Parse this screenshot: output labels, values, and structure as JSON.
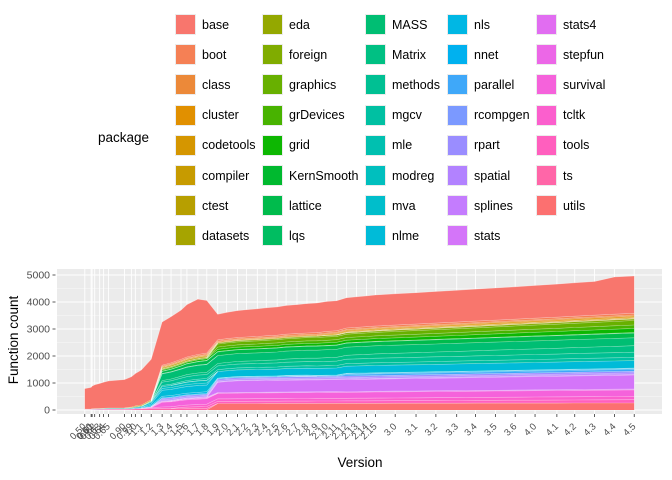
{
  "legend": {
    "title": "package",
    "columns": 5,
    "rows_per_column": 8
  },
  "chart_data": {
    "type": "area",
    "stacked": true,
    "title": "",
    "xlabel": "Version",
    "ylabel": "Function count",
    "ylim": [
      0,
      5000
    ],
    "yticks": [
      0,
      1000,
      2000,
      3000,
      4000,
      5000
    ],
    "grid": true,
    "panel_bg": "#EBEBEB",
    "grid_color": "#FFFFFF",
    "axis_text_color": "#4D4D4D",
    "tick_color": "#333333",
    "legend_position": "top",
    "versions": [
      "0.50",
      "0.60",
      "0.61",
      "0.62",
      "0.63",
      "0.64",
      "0.65",
      "0.90",
      "0.99",
      "1.0",
      "1.1",
      "1.2",
      "1.3",
      "1.4",
      "1.5",
      "1.6",
      "1.7",
      "1.8",
      "1.9",
      "2.0",
      "2.1",
      "2.2",
      "2.3",
      "2.4",
      "2.5",
      "2.6",
      "2.7",
      "2.8",
      "2.9",
      "2.10",
      "2.11",
      "2.12",
      "2.13",
      "2.14",
      "2.15",
      "3.0",
      "3.1",
      "3.2",
      "3.3",
      "3.4",
      "3.5",
      "3.6",
      "4.0",
      "4.1",
      "4.2",
      "4.3",
      "4.4",
      "4.5"
    ],
    "x_numeric": [
      1997.6,
      1997.92,
      1997.97,
      1998.1,
      1998.35,
      1998.55,
      1998.8,
      1999.6,
      1999.95,
      2000.15,
      2000.45,
      2000.95,
      2001.5,
      2001.95,
      2002.45,
      2002.75,
      2003.3,
      2003.75,
      2004.3,
      2004.75,
      2005.3,
      2005.75,
      2006.3,
      2006.75,
      2007.3,
      2007.75,
      2008.3,
      2008.8,
      2009.3,
      2009.8,
      2010.3,
      2010.8,
      2011.3,
      2011.8,
      2012.25,
      2013.25,
      2014.3,
      2015.3,
      2016.35,
      2017.3,
      2018.3,
      2019.3,
      2020.3,
      2021.4,
      2022.3,
      2023.3,
      2024.3,
      2025.3
    ],
    "x_range": [
      1996.2,
      2026.7
    ],
    "series": [
      {
        "name": "base",
        "color": "#F8766D",
        "points": [
          [
            0,
            760
          ],
          [
            7,
            1050
          ],
          [
            8,
            1120
          ],
          [
            9,
            1200
          ],
          [
            10,
            1300
          ],
          [
            11,
            1500
          ],
          [
            12,
            1600
          ],
          [
            16,
            2050
          ],
          [
            17,
            1950
          ],
          [
            18,
            950
          ],
          [
            20,
            1000
          ],
          [
            28,
            1100
          ],
          [
            34,
            1150
          ],
          [
            41,
            1200
          ],
          [
            45,
            1250
          ],
          [
            46,
            1380
          ],
          [
            47,
            1380
          ]
        ]
      },
      {
        "name": "boot",
        "color": "#F58055",
        "points": [
          [
            11,
            0
          ],
          [
            12,
            40
          ],
          [
            18,
            50
          ],
          [
            47,
            65
          ]
        ]
      },
      {
        "name": "class",
        "color": "#EC8939",
        "points": [
          [
            11,
            0
          ],
          [
            12,
            30
          ],
          [
            47,
            40
          ]
        ]
      },
      {
        "name": "cluster",
        "color": "#E19000",
        "points": [
          [
            11,
            0
          ],
          [
            12,
            25
          ],
          [
            18,
            30
          ],
          [
            47,
            45
          ]
        ]
      },
      {
        "name": "codetools",
        "color": "#D59600",
        "points": [
          [
            28,
            0
          ],
          [
            29,
            25
          ],
          [
            47,
            30
          ]
        ]
      },
      {
        "name": "compiler",
        "color": "#C79B00",
        "points": [
          [
            30,
            0
          ],
          [
            31,
            20
          ],
          [
            47,
            25
          ]
        ]
      },
      {
        "name": "ctest",
        "color": "#B79F00",
        "points": [
          [
            7,
            0
          ],
          [
            8,
            25
          ],
          [
            10,
            35
          ],
          [
            17,
            45
          ],
          [
            18,
            0
          ]
        ]
      },
      {
        "name": "datasets",
        "color": "#A6A400",
        "points": [
          [
            17,
            0
          ],
          [
            18,
            3
          ],
          [
            47,
            5
          ]
        ]
      },
      {
        "name": "eda",
        "color": "#94A800",
        "points": [
          [
            0,
            8
          ],
          [
            17,
            15
          ],
          [
            18,
            0
          ]
        ]
      },
      {
        "name": "foreign",
        "color": "#80AC00",
        "points": [
          [
            11,
            0
          ],
          [
            12,
            30
          ],
          [
            18,
            40
          ],
          [
            47,
            60
          ]
        ]
      },
      {
        "name": "graphics",
        "color": "#68B000",
        "points": [
          [
            17,
            0
          ],
          [
            18,
            110
          ],
          [
            34,
            130
          ],
          [
            47,
            165
          ]
        ]
      },
      {
        "name": "grDevices",
        "color": "#48B300",
        "points": [
          [
            17,
            0
          ],
          [
            18,
            85
          ],
          [
            34,
            100
          ],
          [
            47,
            125
          ]
        ]
      },
      {
        "name": "grid",
        "color": "#0DB702",
        "points": [
          [
            11,
            0
          ],
          [
            12,
            40
          ],
          [
            17,
            60
          ],
          [
            18,
            80
          ],
          [
            34,
            100
          ],
          [
            47,
            155
          ]
        ]
      },
      {
        "name": "KernSmooth",
        "color": "#00B92F",
        "points": [
          [
            11,
            0
          ],
          [
            12,
            12
          ],
          [
            47,
            18
          ]
        ]
      },
      {
        "name": "lattice",
        "color": "#00BB4C",
        "points": [
          [
            11,
            0
          ],
          [
            12,
            80
          ],
          [
            16,
            120
          ],
          [
            18,
            140
          ],
          [
            34,
            150
          ],
          [
            47,
            175
          ]
        ]
      },
      {
        "name": "lqs",
        "color": "#00BD61",
        "points": [
          [
            11,
            0
          ],
          [
            12,
            12
          ],
          [
            17,
            15
          ],
          [
            18,
            0
          ]
        ]
      },
      {
        "name": "MASS",
        "color": "#00BE73",
        "points": [
          [
            11,
            0
          ],
          [
            12,
            250
          ],
          [
            16,
            280
          ],
          [
            18,
            290
          ],
          [
            34,
            300
          ],
          [
            47,
            295
          ]
        ]
      },
      {
        "name": "Matrix",
        "color": "#00C083",
        "points": [
          [
            11,
            0
          ],
          [
            12,
            60
          ],
          [
            16,
            80
          ],
          [
            18,
            90
          ],
          [
            22,
            100
          ],
          [
            34,
            160
          ],
          [
            47,
            240
          ]
        ]
      },
      {
        "name": "methods",
        "color": "#00C093",
        "points": [
          [
            10,
            0
          ],
          [
            11,
            20
          ],
          [
            12,
            120
          ],
          [
            16,
            150
          ],
          [
            18,
            140
          ],
          [
            34,
            170
          ],
          [
            47,
            190
          ]
        ]
      },
      {
        "name": "mgcv",
        "color": "#00C0A2",
        "points": [
          [
            11,
            0
          ],
          [
            12,
            40
          ],
          [
            16,
            60
          ],
          [
            18,
            70
          ],
          [
            34,
            100
          ],
          [
            47,
            120
          ]
        ]
      },
      {
        "name": "mle",
        "color": "#00C0B0",
        "points": [
          [
            13,
            0
          ],
          [
            14,
            8
          ],
          [
            17,
            10
          ],
          [
            18,
            0
          ]
        ]
      },
      {
        "name": "modreg",
        "color": "#00BFBE",
        "points": [
          [
            10,
            0
          ],
          [
            11,
            30
          ],
          [
            12,
            70
          ],
          [
            16,
            90
          ],
          [
            17,
            90
          ],
          [
            18,
            0
          ]
        ]
      },
      {
        "name": "mva",
        "color": "#00BECB",
        "points": [
          [
            0,
            5
          ],
          [
            8,
            25
          ],
          [
            10,
            40
          ],
          [
            12,
            70
          ],
          [
            16,
            80
          ],
          [
            17,
            80
          ],
          [
            18,
            0
          ]
        ]
      },
      {
        "name": "nlme",
        "color": "#00BBD8",
        "points": [
          [
            10,
            0
          ],
          [
            11,
            60
          ],
          [
            12,
            220
          ],
          [
            16,
            250
          ],
          [
            18,
            240
          ],
          [
            34,
            270
          ],
          [
            47,
            280
          ]
        ]
      },
      {
        "name": "nls",
        "color": "#00B7E4",
        "points": [
          [
            8,
            0
          ],
          [
            9,
            20
          ],
          [
            10,
            30
          ],
          [
            12,
            55
          ],
          [
            16,
            60
          ],
          [
            17,
            60
          ],
          [
            18,
            12
          ],
          [
            47,
            15
          ]
        ]
      },
      {
        "name": "nnet",
        "color": "#00B1EF",
        "points": [
          [
            11,
            0
          ],
          [
            12,
            25
          ],
          [
            47,
            30
          ]
        ]
      },
      {
        "name": "parallel",
        "color": "#3FA8F9",
        "points": [
          [
            30,
            0
          ],
          [
            31,
            60
          ],
          [
            47,
            70
          ]
        ]
      },
      {
        "name": "rcompgen",
        "color": "#7B99FF",
        "points": [
          [
            24,
            0
          ],
          [
            25,
            15
          ],
          [
            27,
            15
          ],
          [
            28,
            0
          ]
        ]
      },
      {
        "name": "rpart",
        "color": "#9A8DFF",
        "points": [
          [
            11,
            0
          ],
          [
            12,
            50
          ],
          [
            47,
            60
          ]
        ]
      },
      {
        "name": "spatial",
        "color": "#B282FF",
        "points": [
          [
            11,
            0
          ],
          [
            12,
            40
          ],
          [
            47,
            50
          ]
        ]
      },
      {
        "name": "splines",
        "color": "#C47CFE",
        "points": [
          [
            10,
            0
          ],
          [
            11,
            15
          ],
          [
            12,
            25
          ],
          [
            47,
            30
          ]
        ]
      },
      {
        "name": "stats",
        "color": "#D475F9",
        "points": [
          [
            17,
            0
          ],
          [
            18,
            380
          ],
          [
            20,
            430
          ],
          [
            34,
            450
          ],
          [
            47,
            520
          ]
        ]
      },
      {
        "name": "stats4",
        "color": "#E16DF1",
        "points": [
          [
            12,
            0
          ],
          [
            13,
            10
          ],
          [
            18,
            25
          ],
          [
            47,
            30
          ]
        ]
      },
      {
        "name": "stepfun",
        "color": "#EC67E7",
        "points": [
          [
            0,
            8
          ],
          [
            10,
            20
          ],
          [
            16,
            30
          ],
          [
            17,
            30
          ],
          [
            18,
            0
          ]
        ]
      },
      {
        "name": "survival",
        "color": "#F562DB",
        "points": [
          [
            11,
            0
          ],
          [
            12,
            180
          ],
          [
            16,
            200
          ],
          [
            18,
            210
          ],
          [
            34,
            225
          ],
          [
            47,
            240
          ]
        ]
      },
      {
        "name": "tcltk",
        "color": "#FB5FCD",
        "points": [
          [
            10,
            0
          ],
          [
            11,
            40
          ],
          [
            12,
            60
          ],
          [
            16,
            80
          ],
          [
            18,
            90
          ],
          [
            34,
            100
          ],
          [
            47,
            125
          ]
        ]
      },
      {
        "name": "tools",
        "color": "#FF5FBE",
        "points": [
          [
            13,
            0
          ],
          [
            14,
            40
          ],
          [
            16,
            60
          ],
          [
            18,
            80
          ],
          [
            34,
            90
          ],
          [
            47,
            120
          ]
        ]
      },
      {
        "name": "ts",
        "color": "#FF66A8",
        "points": [
          [
            0,
            10
          ],
          [
            7,
            25
          ],
          [
            8,
            30
          ],
          [
            10,
            45
          ],
          [
            16,
            60
          ],
          [
            17,
            60
          ],
          [
            18,
            0
          ]
        ]
      },
      {
        "name": "utils",
        "color": "#FC7070",
        "points": [
          [
            17,
            0
          ],
          [
            18,
            240
          ],
          [
            34,
            250
          ],
          [
            47,
            260
          ]
        ]
      }
    ]
  }
}
